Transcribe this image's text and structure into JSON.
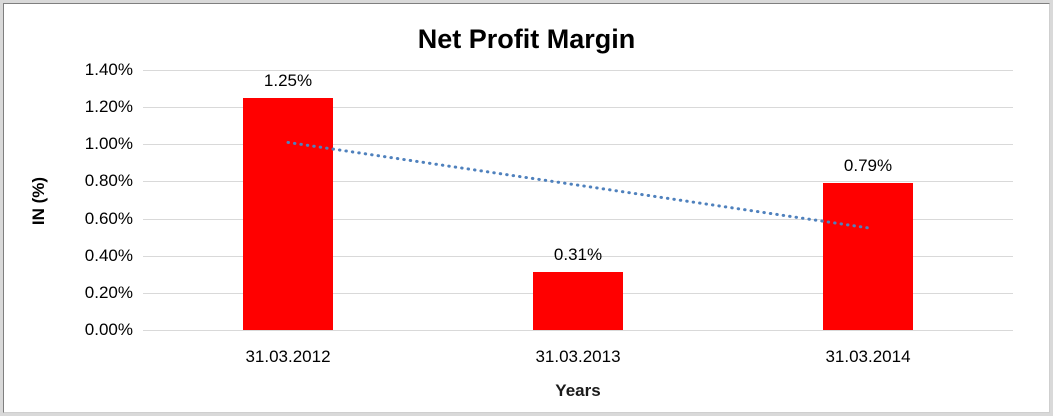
{
  "chart_data": {
    "type": "bar",
    "title": "Net Profit Margin",
    "xlabel": "Years",
    "ylabel": "IN (%)",
    "categories": [
      "31.03.2012",
      "31.03.2013",
      "31.03.2014"
    ],
    "values": [
      1.25,
      0.31,
      0.79
    ],
    "data_labels": [
      "1.25%",
      "0.31%",
      "0.79%"
    ],
    "y_ticks": [
      "0.00%",
      "0.20%",
      "0.40%",
      "0.60%",
      "0.80%",
      "1.00%",
      "1.20%",
      "1.40%"
    ],
    "ylim": [
      0,
      1.4
    ],
    "y_tick_step": 0.2,
    "grid": true,
    "legend_position": "none",
    "bar_color": "#ff0000",
    "trendline": {
      "type": "linear",
      "style": "dotted",
      "color": "#4f81bd",
      "start_value": 1.01,
      "end_value": 0.55
    },
    "colors": {
      "gridline": "#d9d9d9",
      "axis_line": "#d9d9d9",
      "text": "#000000",
      "frame_band": "#d9d9d9",
      "background": "#ffffff"
    }
  }
}
